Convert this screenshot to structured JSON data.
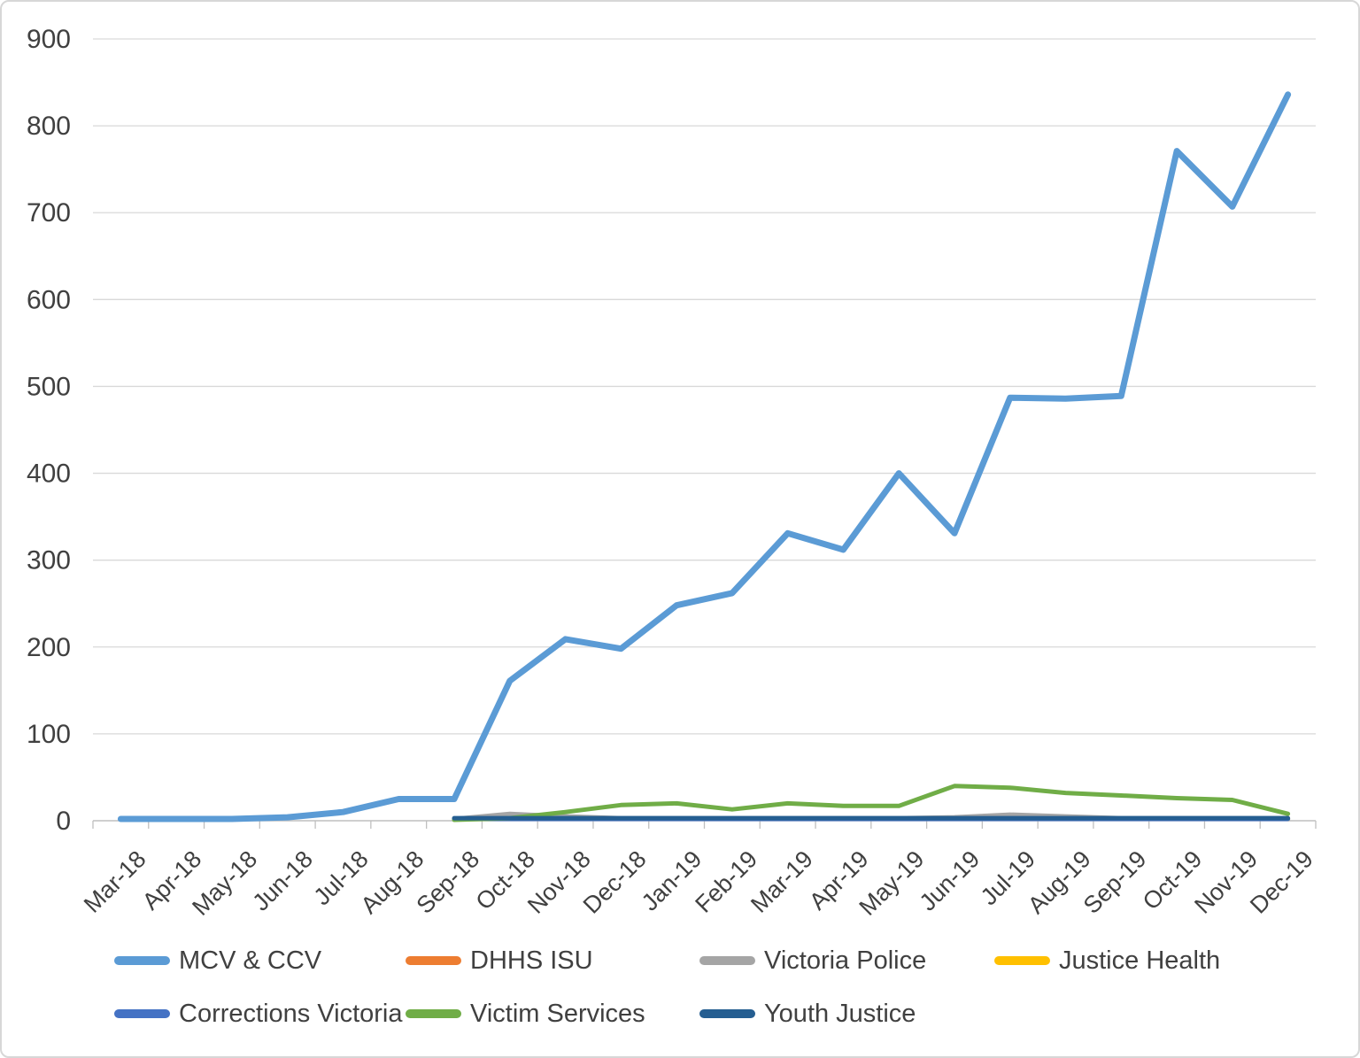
{
  "chart_data": {
    "type": "line",
    "title": "",
    "xlabel": "",
    "ylabel": "",
    "grid": true,
    "legend_position": "bottom",
    "categories": [
      "Mar-18",
      "Apr-18",
      "May-18",
      "Jun-18",
      "Jul-18",
      "Aug-18",
      "Sep-18",
      "Oct-18",
      "Nov-18",
      "Dec-18",
      "Jan-19",
      "Feb-19",
      "Mar-19",
      "Apr-19",
      "May-19",
      "Jun-19",
      "Jul-19",
      "Aug-19",
      "Sep-19",
      "Oct-19",
      "Nov-19",
      "Dec-19"
    ],
    "y_axis": {
      "min": 0,
      "max": 900,
      "step": 100,
      "tick_labels": [
        "0",
        "100",
        "200",
        "300",
        "400",
        "500",
        "600",
        "700",
        "800",
        "900"
      ]
    },
    "x_axis": {
      "rotation": -45
    },
    "series": [
      {
        "name": "MCV & CCV",
        "color": "#5B9BD5",
        "values": [
          2,
          2,
          2,
          4,
          10,
          25,
          25,
          161,
          209,
          198,
          248,
          262,
          331,
          312,
          400,
          331,
          487,
          486,
          489,
          771,
          707,
          836
        ]
      },
      {
        "name": "DHHS ISU",
        "color": "#ED7D31",
        "values": [
          null,
          null,
          null,
          null,
          null,
          null,
          2,
          2,
          2,
          2,
          2,
          2,
          2,
          2,
          2,
          2,
          2,
          2,
          2,
          2,
          2,
          2
        ]
      },
      {
        "name": "Victoria Police",
        "color": "#A5A5A5",
        "values": [
          null,
          null,
          null,
          null,
          null,
          null,
          2,
          8,
          5,
          3,
          3,
          3,
          3,
          3,
          3,
          4,
          7,
          5,
          3,
          3,
          3,
          3
        ]
      },
      {
        "name": "Justice Health",
        "color": "#FFC000",
        "values": [
          null,
          null,
          null,
          null,
          null,
          null,
          2,
          2,
          2,
          2,
          2,
          2,
          2,
          2,
          2,
          2,
          2,
          2,
          2,
          2,
          2,
          2
        ]
      },
      {
        "name": "Corrections Victoria",
        "color": "#4472C4",
        "values": [
          null,
          null,
          null,
          null,
          null,
          null,
          2,
          2,
          2,
          2,
          2,
          2,
          2,
          2,
          2,
          2,
          2,
          2,
          2,
          2,
          2,
          2
        ]
      },
      {
        "name": "Victim Services",
        "color": "#70AD47",
        "values": [
          null,
          null,
          null,
          null,
          null,
          null,
          1,
          3,
          10,
          18,
          20,
          13,
          20,
          17,
          17,
          40,
          38,
          32,
          29,
          26,
          24,
          8
        ]
      },
      {
        "name": "Youth Justice",
        "color": "#255E91",
        "values": [
          null,
          null,
          null,
          null,
          null,
          null,
          3,
          3,
          3,
          3,
          3,
          3,
          3,
          3,
          3,
          3,
          3,
          3,
          3,
          3,
          3,
          3
        ]
      }
    ],
    "legend_rows": [
      [
        "MCV & CCV",
        "DHHS ISU",
        "Victoria Police",
        "Justice Health"
      ],
      [
        "Corrections Victoria",
        "Victim Services",
        "Youth Justice"
      ]
    ]
  },
  "style_colors": {
    "gridline": "#D9D9D9",
    "axis_line": "#BFBFBF",
    "tick_text": "#404040",
    "background": "#FFFFFF",
    "border": "#D7D7D7"
  }
}
